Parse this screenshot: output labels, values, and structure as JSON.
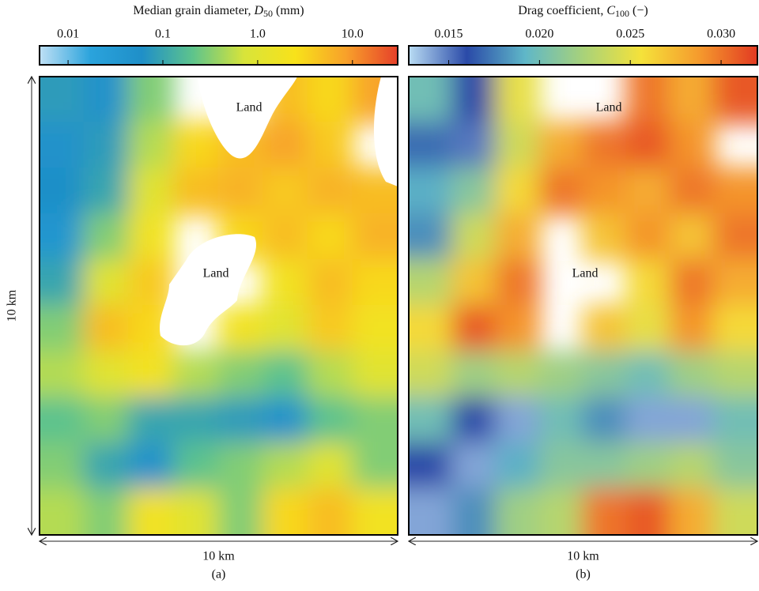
{
  "chart_data": [
    {
      "type": "heatmap",
      "title": "Median grain diameter, ",
      "title_symbol": "D",
      "title_subscript": "50",
      "title_unit": " (mm)",
      "xlim": [
        0.005,
        30
      ],
      "log": true,
      "xticks": [
        0.01,
        0.1,
        {
          "value": 1,
          "label": "1.0"
        },
        {
          "value": 10,
          "label": "10.0"
        }
      ],
      "colorscale": [
        "#bfe0f5",
        "#2aa3dc",
        "#1f8fc8",
        "#5ec48c",
        "#d8e43a",
        "#f8e21a",
        "#f8a02a",
        "#e6402a"
      ],
      "values": [
        [
          0.08,
          0.05,
          0.3,
          null,
          null,
          5,
          3,
          8
        ],
        [
          0.05,
          0.08,
          0.5,
          3,
          5,
          8,
          4,
          null
        ],
        [
          0.06,
          0.1,
          1,
          5,
          6,
          4,
          6,
          5
        ],
        [
          0.04,
          0.3,
          2,
          null,
          3,
          5,
          3,
          6
        ],
        [
          0.1,
          1,
          4,
          null,
          null,
          2,
          5,
          3
        ],
        [
          0.3,
          5,
          3,
          null,
          2,
          1,
          4,
          2
        ],
        [
          0.5,
          1,
          2,
          0.5,
          0.3,
          0.2,
          0.5,
          1
        ],
        [
          0.2,
          0.3,
          0.1,
          0.1,
          0.08,
          0.05,
          0.2,
          0.3
        ],
        [
          0.3,
          0.1,
          0.05,
          0.2,
          0.3,
          0.5,
          1,
          0.3
        ],
        [
          0.5,
          0.3,
          2,
          1,
          0.3,
          3,
          5,
          2
        ]
      ],
      "annotations": [
        "Land",
        "Land"
      ],
      "xlabel": "10 km",
      "ylabel": "10 km",
      "panel_label": "(a)"
    },
    {
      "type": "heatmap",
      "title": "Drag coefficient, ",
      "title_symbol": "C",
      "title_subscript": "100",
      "title_unit": " (−)",
      "xlim": [
        0.0128,
        0.032
      ],
      "log": false,
      "xticks": [
        0.015,
        {
          "value": 0.02,
          "label": "0.020"
        },
        0.025,
        {
          "value": 0.03,
          "label": "0.030"
        }
      ],
      "colorscale": [
        "#b9dcf3",
        "#2a4aa8",
        "#5fb7c8",
        "#a8d27a",
        "#f5e23a",
        "#f59a2d",
        "#e23a22"
      ],
      "values": [
        [
          0.02,
          0.016,
          0.025,
          null,
          null,
          0.03,
          0.028,
          0.031
        ],
        [
          0.017,
          0.015,
          0.024,
          0.028,
          0.03,
          0.031,
          0.029,
          null
        ],
        [
          0.019,
          0.021,
          0.026,
          0.03,
          0.029,
          0.028,
          0.03,
          0.029
        ],
        [
          0.018,
          0.024,
          0.028,
          null,
          0.027,
          0.029,
          0.027,
          0.03
        ],
        [
          0.023,
          0.027,
          0.03,
          null,
          null,
          0.026,
          0.03,
          0.028
        ],
        [
          0.026,
          0.031,
          0.029,
          null,
          0.027,
          0.025,
          0.029,
          0.026
        ],
        [
          0.024,
          0.022,
          0.023,
          0.022,
          0.021,
          0.02,
          0.022,
          0.023
        ],
        [
          0.02,
          0.016,
          0.014,
          0.02,
          0.018,
          0.014,
          0.014,
          0.02
        ],
        [
          0.016,
          0.014,
          0.019,
          0.021,
          0.021,
          0.022,
          0.023,
          0.021
        ],
        [
          0.014,
          0.018,
          0.022,
          0.023,
          0.03,
          0.031,
          0.028,
          0.024
        ]
      ],
      "annotations": [
        "Land",
        "Land"
      ],
      "xlabel": "10 km",
      "panel_label": "(b)"
    }
  ]
}
